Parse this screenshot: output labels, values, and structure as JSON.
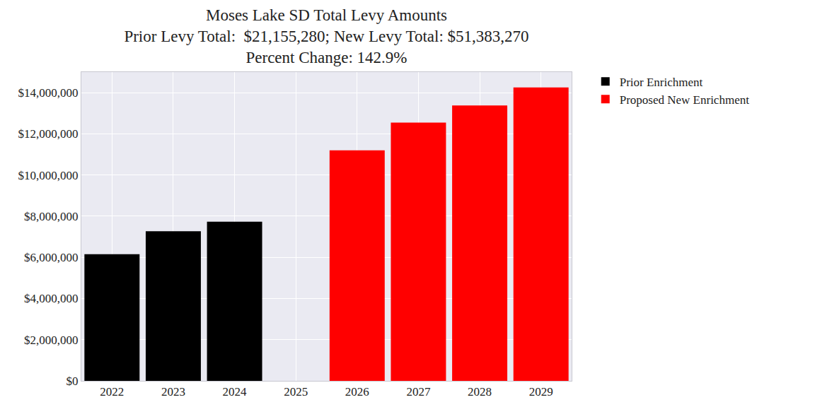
{
  "chart_data": {
    "type": "bar",
    "title": "Moses Lake SD Total Levy Amounts\nPrior Levy Total:  $21,155,280; New Levy Total: $51,383,270\nPercent Change: 142.9%",
    "categories": [
      "2022",
      "2023",
      "2024",
      "2025",
      "2026",
      "2027",
      "2028",
      "2029"
    ],
    "series": [
      {
        "name": "Prior Enrichment",
        "color": "#000000",
        "values": [
          6150000,
          7270000,
          7735280,
          null,
          null,
          null,
          null,
          null
        ]
      },
      {
        "name": "Proposed New Enrichment",
        "color": "#ff0000",
        "values": [
          null,
          null,
          null,
          null,
          11200000,
          12550000,
          13380000,
          14253270
        ]
      }
    ],
    "ylim": [
      0,
      15000000
    ],
    "yticks": [
      {
        "value": 0,
        "label": "$0"
      },
      {
        "value": 2000000,
        "label": "$2,000,000"
      },
      {
        "value": 4000000,
        "label": "$4,000,000"
      },
      {
        "value": 6000000,
        "label": "$6,000,000"
      },
      {
        "value": 8000000,
        "label": "$8,000,000"
      },
      {
        "value": 10000000,
        "label": "$10,000,000"
      },
      {
        "value": 12000000,
        "label": "$12,000,000"
      },
      {
        "value": 14000000,
        "label": "$14,000,000"
      }
    ],
    "grid": true,
    "legend": "right"
  }
}
